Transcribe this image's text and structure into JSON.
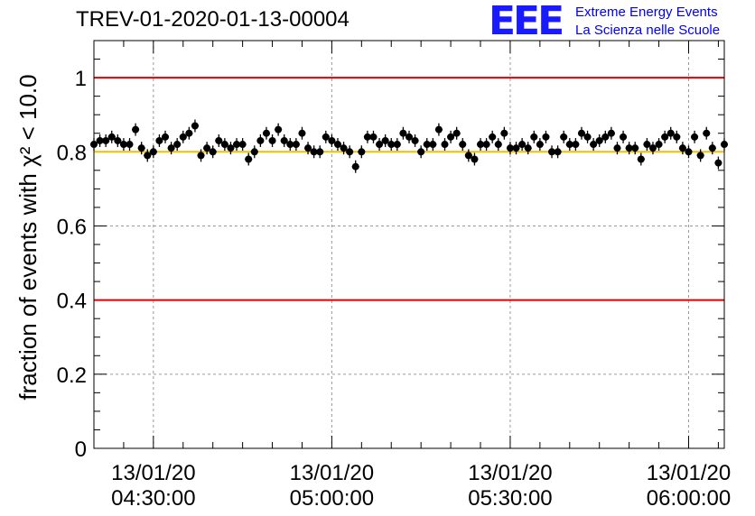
{
  "header": {
    "title": "TREV-01-2020-01-13-00004",
    "logo_text": "EEE",
    "logo_line1": "Extreme Energy Events",
    "logo_line2": "La Scienza nelle Scuole"
  },
  "colors": {
    "threshold_red": "#e00000",
    "reference_yellow": "#f0c000",
    "marker": "#000000",
    "grid": "#9a9a9a",
    "logo_blue": "#1a1aff"
  },
  "chart_data": {
    "type": "scatter",
    "title": "TREV-01-2020-01-13-00004",
    "xlabel": "",
    "ylabel": "fraction of events with χ² < 10.0",
    "x_unit": "time (HH:MM)",
    "xlim": [
      "04:20",
      "06:06"
    ],
    "ylim": [
      0,
      1.1
    ],
    "yticks": [
      "0",
      "0.2",
      "0.4",
      "0.6",
      "0.8",
      "1"
    ],
    "xticks": [
      {
        "date": "13/01/20",
        "time": "04:30:00"
      },
      {
        "date": "13/01/20",
        "time": "05:00:00"
      },
      {
        "date": "13/01/20",
        "time": "05:30:00"
      },
      {
        "date": "13/01/20",
        "time": "06:00:00"
      }
    ],
    "grid": true,
    "error_bar": 0.017,
    "reference_lines": [
      {
        "y": 1.0,
        "color": "red"
      },
      {
        "y": 0.8,
        "color": "yellow"
      },
      {
        "y": 0.4,
        "color": "red"
      }
    ],
    "points": [
      {
        "x": "04:20",
        "y": 0.82
      },
      {
        "x": "04:21",
        "y": 0.83
      },
      {
        "x": "04:22",
        "y": 0.83
      },
      {
        "x": "04:23",
        "y": 0.84
      },
      {
        "x": "04:24",
        "y": 0.83
      },
      {
        "x": "04:25",
        "y": 0.82
      },
      {
        "x": "04:26",
        "y": 0.82
      },
      {
        "x": "04:27",
        "y": 0.86
      },
      {
        "x": "04:28",
        "y": 0.81
      },
      {
        "x": "04:29",
        "y": 0.79
      },
      {
        "x": "04:30",
        "y": 0.8
      },
      {
        "x": "04:31",
        "y": 0.83
      },
      {
        "x": "04:32",
        "y": 0.84
      },
      {
        "x": "04:33",
        "y": 0.81
      },
      {
        "x": "04:34",
        "y": 0.82
      },
      {
        "x": "04:35",
        "y": 0.84
      },
      {
        "x": "04:36",
        "y": 0.85
      },
      {
        "x": "04:37",
        "y": 0.87
      },
      {
        "x": "04:38",
        "y": 0.79
      },
      {
        "x": "04:39",
        "y": 0.81
      },
      {
        "x": "04:40",
        "y": 0.8
      },
      {
        "x": "04:41",
        "y": 0.83
      },
      {
        "x": "04:42",
        "y": 0.82
      },
      {
        "x": "04:43",
        "y": 0.81
      },
      {
        "x": "04:44",
        "y": 0.82
      },
      {
        "x": "04:45",
        "y": 0.82
      },
      {
        "x": "04:46",
        "y": 0.78
      },
      {
        "x": "04:47",
        "y": 0.8
      },
      {
        "x": "04:48",
        "y": 0.83
      },
      {
        "x": "04:49",
        "y": 0.85
      },
      {
        "x": "04:50",
        "y": 0.83
      },
      {
        "x": "04:51",
        "y": 0.86
      },
      {
        "x": "04:52",
        "y": 0.83
      },
      {
        "x": "04:53",
        "y": 0.82
      },
      {
        "x": "04:54",
        "y": 0.82
      },
      {
        "x": "04:55",
        "y": 0.85
      },
      {
        "x": "04:56",
        "y": 0.81
      },
      {
        "x": "04:57",
        "y": 0.8
      },
      {
        "x": "04:58",
        "y": 0.8
      },
      {
        "x": "04:59",
        "y": 0.84
      },
      {
        "x": "05:00",
        "y": 0.83
      },
      {
        "x": "05:01",
        "y": 0.82
      },
      {
        "x": "05:02",
        "y": 0.81
      },
      {
        "x": "05:03",
        "y": 0.8
      },
      {
        "x": "05:04",
        "y": 0.76
      },
      {
        "x": "05:05",
        "y": 0.8
      },
      {
        "x": "05:06",
        "y": 0.84
      },
      {
        "x": "05:07",
        "y": 0.84
      },
      {
        "x": "05:08",
        "y": 0.82
      },
      {
        "x": "05:09",
        "y": 0.83
      },
      {
        "x": "05:10",
        "y": 0.82
      },
      {
        "x": "05:11",
        "y": 0.82
      },
      {
        "x": "05:12",
        "y": 0.85
      },
      {
        "x": "05:13",
        "y": 0.84
      },
      {
        "x": "05:14",
        "y": 0.83
      },
      {
        "x": "05:15",
        "y": 0.8
      },
      {
        "x": "05:16",
        "y": 0.82
      },
      {
        "x": "05:17",
        "y": 0.82
      },
      {
        "x": "05:18",
        "y": 0.86
      },
      {
        "x": "05:19",
        "y": 0.82
      },
      {
        "x": "05:20",
        "y": 0.84
      },
      {
        "x": "05:21",
        "y": 0.85
      },
      {
        "x": "05:22",
        "y": 0.82
      },
      {
        "x": "05:23",
        "y": 0.79
      },
      {
        "x": "05:24",
        "y": 0.78
      },
      {
        "x": "05:25",
        "y": 0.82
      },
      {
        "x": "05:26",
        "y": 0.82
      },
      {
        "x": "05:27",
        "y": 0.84
      },
      {
        "x": "05:28",
        "y": 0.82
      },
      {
        "x": "05:29",
        "y": 0.85
      },
      {
        "x": "05:30",
        "y": 0.81
      },
      {
        "x": "05:31",
        "y": 0.81
      },
      {
        "x": "05:32",
        "y": 0.82
      },
      {
        "x": "05:33",
        "y": 0.81
      },
      {
        "x": "05:34",
        "y": 0.84
      },
      {
        "x": "05:35",
        "y": 0.82
      },
      {
        "x": "05:36",
        "y": 0.84
      },
      {
        "x": "05:37",
        "y": 0.8
      },
      {
        "x": "05:38",
        "y": 0.8
      },
      {
        "x": "05:39",
        "y": 0.84
      },
      {
        "x": "05:40",
        "y": 0.82
      },
      {
        "x": "05:41",
        "y": 0.82
      },
      {
        "x": "05:42",
        "y": 0.85
      },
      {
        "x": "05:43",
        "y": 0.84
      },
      {
        "x": "05:44",
        "y": 0.82
      },
      {
        "x": "05:45",
        "y": 0.83
      },
      {
        "x": "05:46",
        "y": 0.84
      },
      {
        "x": "05:47",
        "y": 0.85
      },
      {
        "x": "05:48",
        "y": 0.81
      },
      {
        "x": "05:49",
        "y": 0.84
      },
      {
        "x": "05:50",
        "y": 0.81
      },
      {
        "x": "05:51",
        "y": 0.81
      },
      {
        "x": "05:52",
        "y": 0.78
      },
      {
        "x": "05:53",
        "y": 0.82
      },
      {
        "x": "05:54",
        "y": 0.81
      },
      {
        "x": "05:55",
        "y": 0.82
      },
      {
        "x": "05:56",
        "y": 0.84
      },
      {
        "x": "05:57",
        "y": 0.85
      },
      {
        "x": "05:58",
        "y": 0.84
      },
      {
        "x": "05:59",
        "y": 0.81
      },
      {
        "x": "06:00",
        "y": 0.8
      },
      {
        "x": "06:01",
        "y": 0.84
      },
      {
        "x": "06:02",
        "y": 0.79
      },
      {
        "x": "06:03",
        "y": 0.85
      },
      {
        "x": "06:04",
        "y": 0.81
      },
      {
        "x": "06:05",
        "y": 0.77
      },
      {
        "x": "06:06",
        "y": 0.82
      }
    ]
  }
}
